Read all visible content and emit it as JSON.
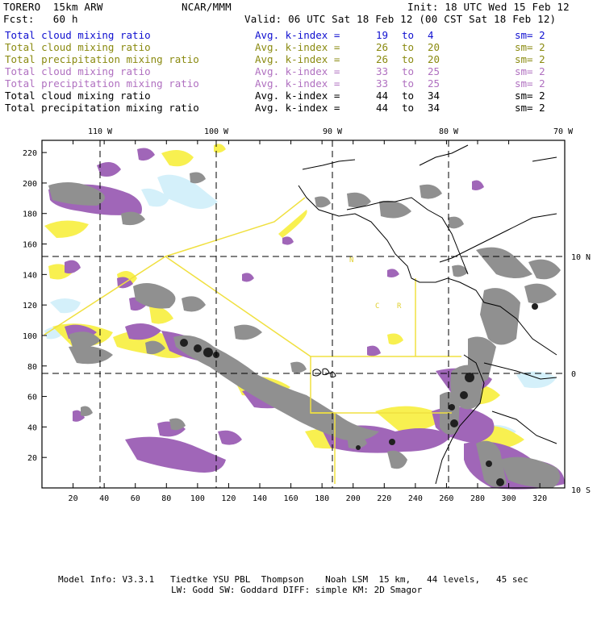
{
  "header": {
    "model": "TORERO  15km ARW",
    "org": "NCAR/MMM",
    "init": "Init: 18 UTC Wed 15 Feb 12",
    "fcst": "Fcst:   60 h",
    "valid": "Valid: 06 UTC Sat 18 Feb 12 (00 CST Sat 18 Feb 12)"
  },
  "colors": {
    "blue": "#1010d0",
    "olive": "#8a8a10",
    "purple": "#b070c0",
    "black": "#000000",
    "cloud_purple": "#a066b8",
    "cloud_yellow": "#f8f050",
    "cloud_lightblue": "#d4f0fa",
    "cloud_gray": "#909090",
    "outline_yellow": "#f0e040"
  },
  "legend": [
    {
      "label": "Total cloud mixing ratio",
      "index": "Avg. k-index =",
      "from": "19",
      "to_word": "to",
      "to": "4",
      "sm": "sm= 2",
      "color": "#1010d0"
    },
    {
      "label": "Total cloud mixing ratio",
      "index": "Avg. k-index =",
      "from": "26",
      "to_word": "to",
      "to": "20",
      "sm": "sm= 2",
      "color": "#8a8a10"
    },
    {
      "label": "Total precipitation mixing ratio",
      "index": "Avg. k-index =",
      "from": "26",
      "to_word": "to",
      "to": "20",
      "sm": "sm= 2",
      "color": "#8a8a10"
    },
    {
      "label": "Total cloud mixing ratio",
      "index": "Avg. k-index =",
      "from": "33",
      "to_word": "to",
      "to": "25",
      "sm": "sm= 2",
      "color": "#b070c0"
    },
    {
      "label": "Total precipitation mixing ratio",
      "index": "Avg. k-index =",
      "from": "33",
      "to_word": "to",
      "to": "25",
      "sm": "sm= 2",
      "color": "#b070c0"
    },
    {
      "label": "Total cloud mixing ratio",
      "index": "Avg. k-index =",
      "from": "44",
      "to_word": "to",
      "to": "34",
      "sm": "sm= 2",
      "color": "#000000"
    },
    {
      "label": "Total precipitation mixing ratio",
      "index": "Avg. k-index =",
      "from": "44",
      "to_word": "to",
      "to": "34",
      "sm": "sm= 2",
      "color": "#000000"
    }
  ],
  "map": {
    "lon_labels": [
      "110 W",
      "100 W",
      "90 W",
      "80 W",
      "70 W"
    ],
    "lat_labels": [
      "10 N",
      "0",
      "10 S"
    ],
    "y_ticks": [
      "220",
      "200",
      "180",
      "160",
      "140",
      "120",
      "100",
      "80",
      "60",
      "40",
      "20"
    ],
    "x_ticks": [
      "20",
      "40",
      "60",
      "80",
      "100",
      "120",
      "140",
      "160",
      "180",
      "200",
      "220",
      "240",
      "260",
      "280",
      "300",
      "320"
    ],
    "country_letters": [
      "N",
      "C",
      "R"
    ]
  },
  "footer": {
    "line1": "Model Info: V3.3.1   Tiedtke YSU PBL  Thompson    Noah LSM  15 km,   44 levels,   45 sec",
    "line2": "LW: Godd SW: Goddard DIFF: simple KM: 2D Smagor"
  }
}
